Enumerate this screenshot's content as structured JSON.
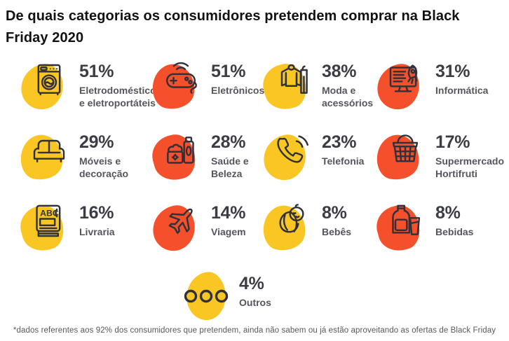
{
  "title": "De quais categorias os consumidores pretendem comprar na Black Friday 2020",
  "footnote": "*dados referentes aos 92% dos consumidores que pretendem, ainda não sabem ou já estão aproveitando as ofertas de Black Friday",
  "colors": {
    "yellow": "#F9C623",
    "red": "#F4502C",
    "icon_stroke": "#31313B",
    "percent_text": "#3C3C46",
    "label_text": "#55555E"
  },
  "items": [
    {
      "percent": "51%",
      "label": "Eletrodomésticos e eletroportáteis",
      "icon": "washing-machine",
      "blob": "yellow"
    },
    {
      "percent": "51%",
      "label": "Eletrônicos",
      "icon": "game-controller",
      "blob": "red"
    },
    {
      "percent": "38%",
      "label": "Moda e acessórios",
      "icon": "clothes-hanger",
      "blob": "yellow"
    },
    {
      "percent": "31%",
      "label": "Informática",
      "icon": "computer-rocket",
      "blob": "red"
    },
    {
      "percent": "29%",
      "label": "Móveis e decoração",
      "icon": "sofa",
      "blob": "yellow"
    },
    {
      "percent": "28%",
      "label": "Saúde e Beleza",
      "icon": "cosmetics",
      "blob": "red"
    },
    {
      "percent": "23%",
      "label": "Telefonia",
      "icon": "phone",
      "blob": "yellow"
    },
    {
      "percent": "17%",
      "label": "Supermercado Hortifruti",
      "icon": "shopping-basket",
      "blob": "red"
    },
    {
      "percent": "16%",
      "label": "Livraria",
      "icon": "book",
      "blob": "yellow"
    },
    {
      "percent": "14%",
      "label": "Viagem",
      "icon": "airplane",
      "blob": "red"
    },
    {
      "percent": "8%",
      "label": "Bebês",
      "icon": "baby",
      "blob": "yellow"
    },
    {
      "percent": "8%",
      "label": "Bebidas",
      "icon": "bottle-glass",
      "blob": "red"
    },
    {
      "percent": "4%",
      "label": "Outros",
      "icon": "three-dots",
      "blob": "yellow"
    }
  ],
  "chart_data": {
    "type": "table",
    "title": "De quais categorias os consumidores pretendem comprar na Black Friday 2020",
    "categories": [
      "Eletrodomésticos e eletroportáteis",
      "Eletrônicos",
      "Moda e acessórios",
      "Informática",
      "Móveis e decoração",
      "Saúde e Beleza",
      "Telefonia",
      "Supermercado Hortifruti",
      "Livraria",
      "Viagem",
      "Bebês",
      "Bebidas",
      "Outros"
    ],
    "values": [
      51,
      51,
      38,
      31,
      29,
      28,
      23,
      17,
      16,
      14,
      8,
      8,
      4
    ],
    "unit": "%",
    "footnote": "*dados referentes aos 92% dos consumidores que pretendem, ainda não sabem ou já estão aproveitando as ofertas de Black Friday"
  }
}
